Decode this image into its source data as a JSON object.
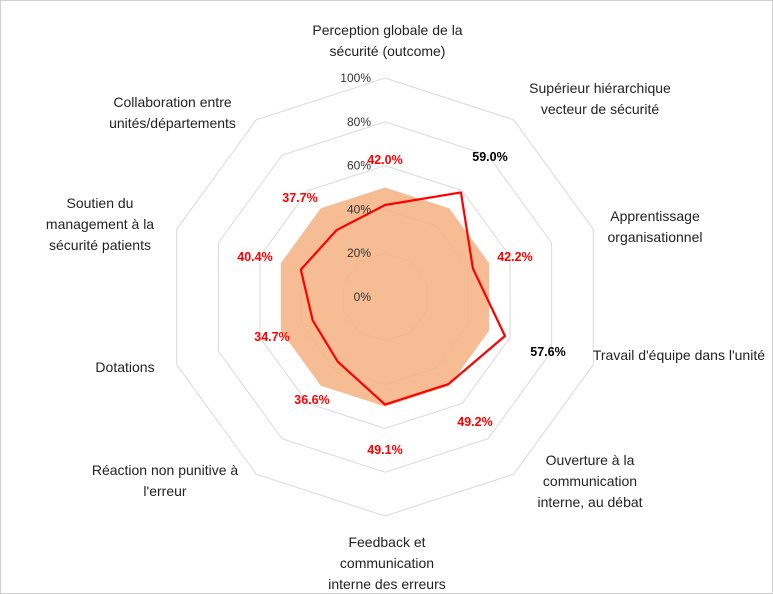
{
  "chart_data": {
    "type": "radar",
    "categories": [
      "Perception globale de la sécurité (outcome)",
      "Supérieur hiérarchique vecteur de sécurité",
      "Apprentissage organisationnel",
      "Travail d'équipe dans l'unité",
      "Ouverture à la communication interne, au débat",
      "Feedback et communication interne des erreurs",
      "Réaction non punitive à l'erreur",
      "Dotations",
      "Soutien du management à la sécurité patients",
      "Collaboration entre unités/départements"
    ],
    "series": [
      {
        "color": "#f4b183",
        "fill": true,
        "values": [
          50,
          50,
          50,
          50,
          50,
          50,
          50,
          50,
          50,
          50
        ]
      },
      {
        "color": "#ff0000",
        "fill": false,
        "values": [
          42.0,
          59.0,
          42.2,
          57.6,
          49.2,
          49.1,
          36.6,
          34.7,
          40.4,
          37.7
        ],
        "value_labels": [
          "42.0%",
          "59.0%",
          "42.2%",
          "57.6%",
          "49.2%",
          "49.1%",
          "36.6%",
          "34.7%",
          "40.4%",
          "37.7%"
        ],
        "value_label_colors": [
          "#ff0000",
          "#000000",
          "#ff0000",
          "#000000",
          "#ff0000",
          "#ff0000",
          "#ff0000",
          "#ff0000",
          "#ff0000",
          "#ff0000"
        ]
      }
    ],
    "ylim": [
      0,
      100
    ],
    "yticks": [
      {
        "value": 0,
        "label": "0%"
      },
      {
        "value": 20,
        "label": "20%"
      },
      {
        "value": 40,
        "label": "40%"
      },
      {
        "value": 60,
        "label": "60%"
      },
      {
        "value": 80,
        "label": "80%"
      },
      {
        "value": 100,
        "label": "100%"
      }
    ],
    "grid": true
  }
}
